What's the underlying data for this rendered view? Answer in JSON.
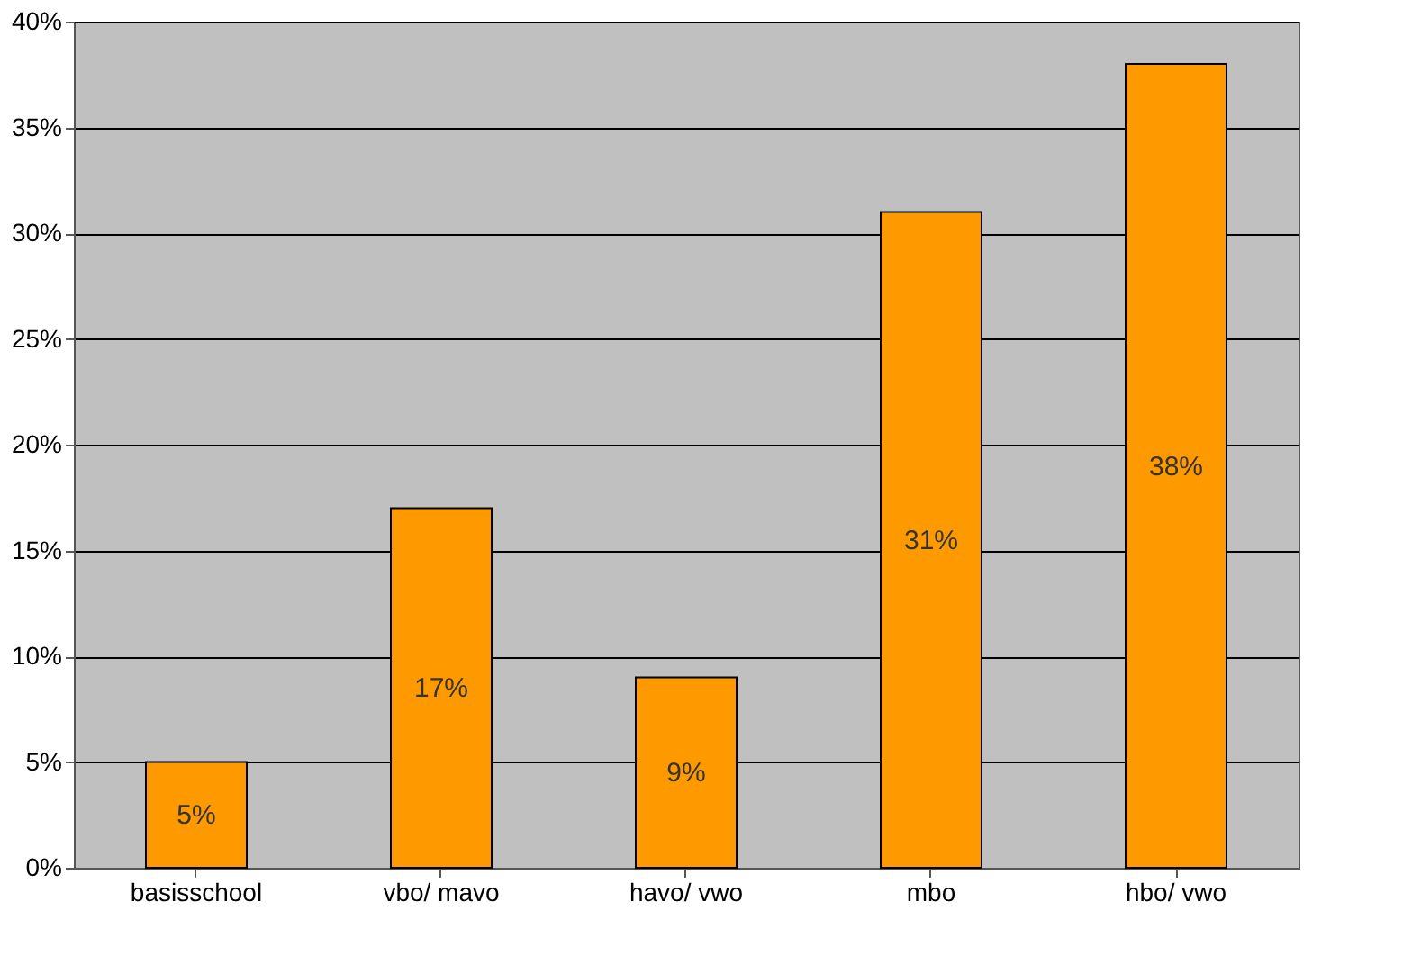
{
  "chart_data": {
    "type": "bar",
    "categories": [
      "basisschool",
      "vbo/ mavo",
      "havo/ vwo",
      "mbo",
      "hbo/ vwo"
    ],
    "values": [
      5,
      17,
      9,
      31,
      38
    ],
    "value_labels": [
      "5%",
      "17%",
      "9%",
      "31%",
      "38%"
    ],
    "color": "#ff9900",
    "ylim": [
      0,
      40
    ],
    "yticks": [
      {
        "value": 0,
        "label": "0%"
      },
      {
        "value": 5,
        "label": "5%"
      },
      {
        "value": 10,
        "label": "10%"
      },
      {
        "value": 15,
        "label": "15%"
      },
      {
        "value": 20,
        "label": "20%"
      },
      {
        "value": 25,
        "label": "25%"
      },
      {
        "value": 30,
        "label": "30%"
      },
      {
        "value": 35,
        "label": "35%"
      },
      {
        "value": 40,
        "label": "40%"
      }
    ],
    "grid": "y"
  }
}
